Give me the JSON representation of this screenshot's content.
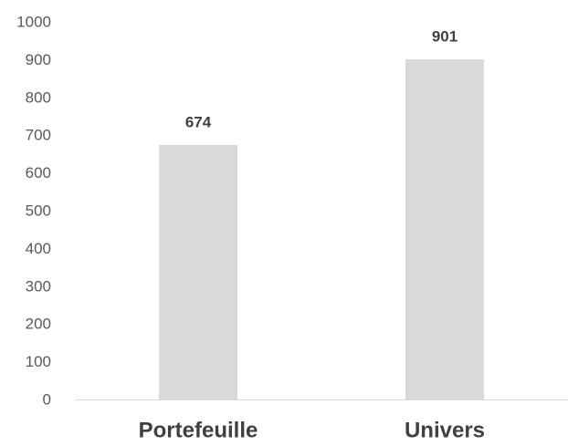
{
  "chart_data": {
    "type": "bar",
    "categories": [
      "Portefeuille",
      "Univers"
    ],
    "values": [
      674,
      901
    ],
    "data_labels": [
      "674",
      "901"
    ],
    "title": "",
    "xlabel": "",
    "ylabel": "",
    "ylim": [
      0,
      1000
    ],
    "yticks": [
      0,
      100,
      200,
      300,
      400,
      500,
      600,
      700,
      800,
      900,
      1000
    ],
    "grid": false,
    "legend": "none",
    "colors": {
      "bar": "#d9d9d9",
      "axis": "#d9d9d9",
      "tick_text": "#595959",
      "label_text": "#404040"
    }
  }
}
